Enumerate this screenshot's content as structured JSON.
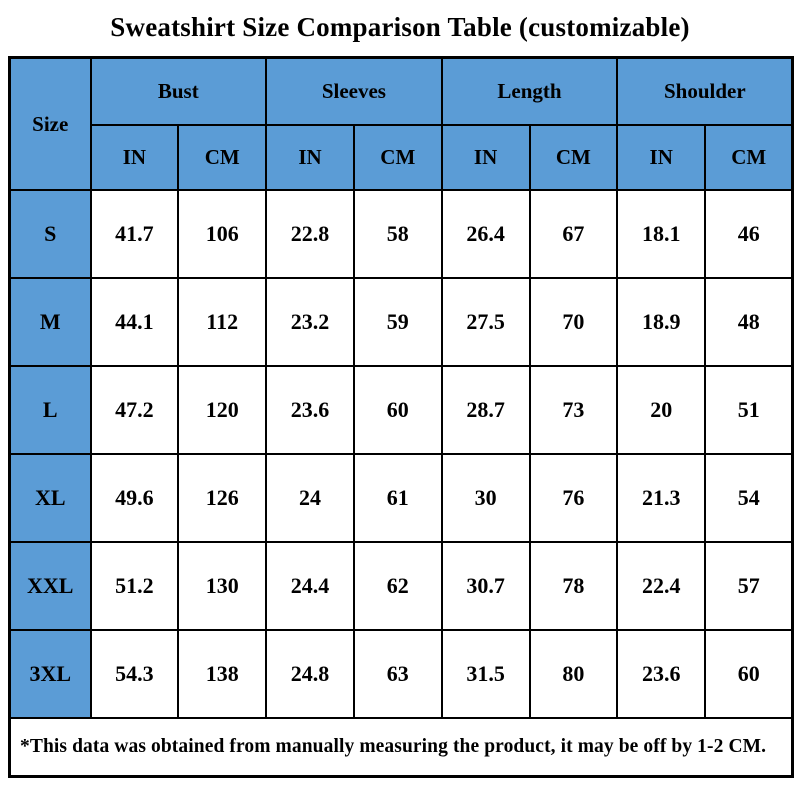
{
  "chart_data": {
    "type": "table",
    "title": "Sweatshirt Size Comparison Table (customizable)",
    "corner_header": "Size",
    "groups": [
      {
        "label": "Bust",
        "sub": [
          "IN",
          "CM"
        ]
      },
      {
        "label": "Sleeves",
        "sub": [
          "IN",
          "CM"
        ]
      },
      {
        "label": "Length",
        "sub": [
          "IN",
          "CM"
        ]
      },
      {
        "label": "Shoulder",
        "sub": [
          "IN",
          "CM"
        ]
      }
    ],
    "rows": [
      {
        "size": "S",
        "values": [
          "41.7",
          "106",
          "22.8",
          "58",
          "26.4",
          "67",
          "18.1",
          "46"
        ]
      },
      {
        "size": "M",
        "values": [
          "44.1",
          "112",
          "23.2",
          "59",
          "27.5",
          "70",
          "18.9",
          "48"
        ]
      },
      {
        "size": "L",
        "values": [
          "47.2",
          "120",
          "23.6",
          "60",
          "28.7",
          "73",
          "20",
          "51"
        ]
      },
      {
        "size": "XL",
        "values": [
          "49.6",
          "126",
          "24",
          "61",
          "30",
          "76",
          "21.3",
          "54"
        ]
      },
      {
        "size": "XXL",
        "values": [
          "51.2",
          "130",
          "24.4",
          "62",
          "30.7",
          "78",
          "22.4",
          "57"
        ]
      },
      {
        "size": "3XL",
        "values": [
          "54.3",
          "138",
          "24.8",
          "63",
          "31.5",
          "80",
          "23.6",
          "60"
        ]
      }
    ],
    "footnote": "*This data was obtained from manually measuring the product, it may be off by 1-2 CM.",
    "layout": {
      "grid": "on",
      "header_rows": 2,
      "data_rows": 6,
      "value_columns": 8
    }
  },
  "colors": {
    "header_blue": "#5B9CD6",
    "border": "#000000",
    "cell_background": "#FFFFFF",
    "text": "#000000"
  }
}
